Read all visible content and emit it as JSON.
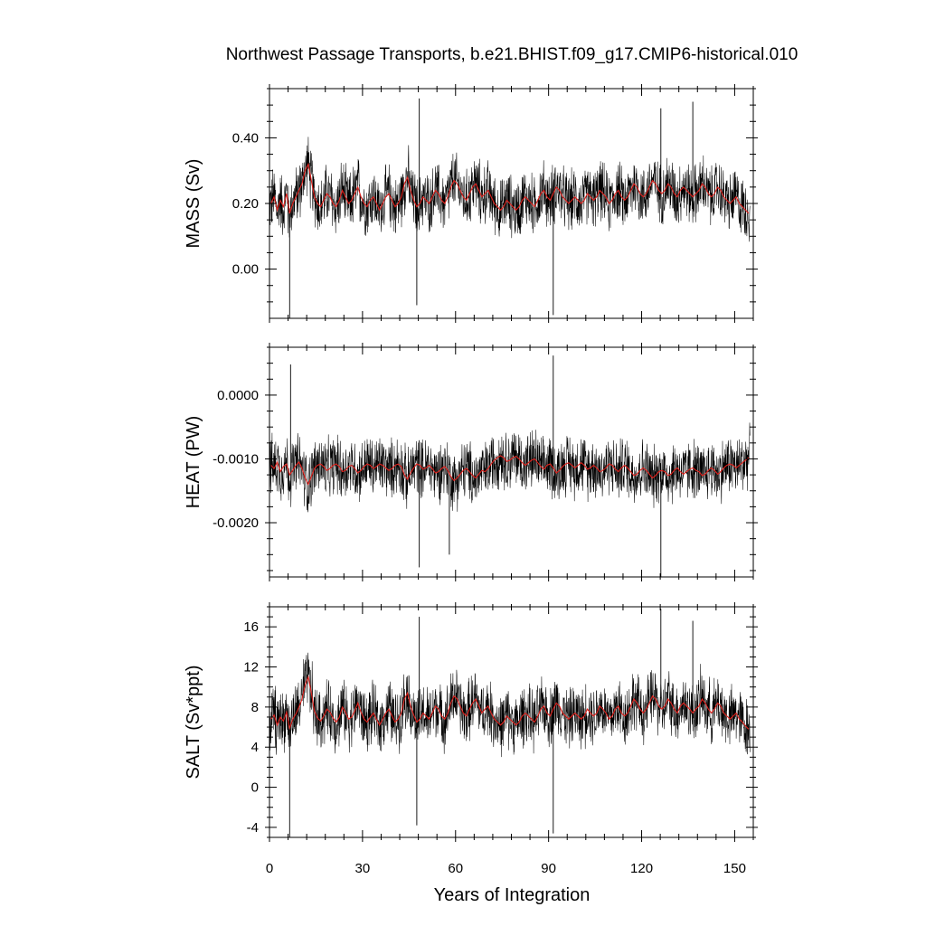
{
  "chart_data": {
    "type": "line",
    "title": "Northwest Passage Transports, b.e21.BHIST.f09_g17.CMIP6-historical.010",
    "xlabel": "Years of Integration",
    "xlim": [
      0,
      156
    ],
    "xticks": [
      0,
      30,
      60,
      90,
      120,
      150
    ],
    "grid": false,
    "colors": {
      "monthly": "#000000",
      "running_mean": "#e0201b"
    },
    "panels": [
      {
        "ylabel": "MASS (Sv)",
        "ylim": [
          -0.15,
          0.55
        ],
        "yticks": [
          0.0,
          0.2,
          0.4
        ],
        "yticklabels": [
          "0.00",
          "0.20",
          "0.40"
        ],
        "series": [
          {
            "values": [
              0.2,
              0.22,
              0.18,
              0.21,
              0.19,
              0.23,
              0.17,
              0.2,
              0.22,
              0.24,
              0.26,
              0.3,
              0.32,
              0.27,
              0.22,
              0.2,
              0.19,
              0.21,
              0.23,
              0.22,
              0.2,
              0.19,
              0.21,
              0.24,
              0.22,
              0.2,
              0.21,
              0.23,
              0.25,
              0.22,
              0.2,
              0.19,
              0.21,
              0.22,
              0.2,
              0.18,
              0.2,
              0.22,
              0.23,
              0.21,
              0.19,
              0.2,
              0.22,
              0.26,
              0.28,
              0.24,
              0.21,
              0.19,
              0.2,
              0.22,
              0.21,
              0.2,
              0.22,
              0.24,
              0.23,
              0.21,
              0.2,
              0.22,
              0.25,
              0.27,
              0.26,
              0.24,
              0.22,
              0.21,
              0.23,
              0.25,
              0.26,
              0.24,
              0.22,
              0.23,
              0.24,
              0.22,
              0.2,
              0.19,
              0.18,
              0.19,
              0.21,
              0.2,
              0.19,
              0.18,
              0.19,
              0.21,
              0.22,
              0.21,
              0.2,
              0.19,
              0.21,
              0.23,
              0.24,
              0.22,
              0.21,
              0.23,
              0.25,
              0.24,
              0.22,
              0.21,
              0.2,
              0.21,
              0.22,
              0.21,
              0.2,
              0.21,
              0.23,
              0.22,
              0.21,
              0.22,
              0.24,
              0.23,
              0.22,
              0.2,
              0.21,
              0.23,
              0.24,
              0.22,
              0.21,
              0.22,
              0.24,
              0.26,
              0.25,
              0.23,
              0.22,
              0.23,
              0.25,
              0.27,
              0.26,
              0.24,
              0.23,
              0.24,
              0.26,
              0.25,
              0.23,
              0.22,
              0.24,
              0.25,
              0.24,
              0.23,
              0.22,
              0.23,
              0.24,
              0.26,
              0.25,
              0.23,
              0.22,
              0.23,
              0.25,
              0.24,
              0.22,
              0.21,
              0.2,
              0.21,
              0.22,
              0.2,
              0.19,
              0.18,
              0.17
            ]
          }
        ],
        "spikes": [
          [
            6.5,
            -0.15
          ],
          [
            47.5,
            -0.11
          ],
          [
            91.5,
            -0.14
          ],
          [
            126.2,
            0.49
          ],
          [
            48.3,
            0.52
          ],
          [
            136.5,
            0.51
          ]
        ]
      },
      {
        "ylabel": "HEAT (PW)",
        "ylim": [
          -0.00285,
          0.00075
        ],
        "yticks": [
          0.0,
          -0.001,
          -0.002
        ],
        "yticklabels": [
          "0.0000",
          "-0.0010",
          "-0.0020"
        ],
        "series": [
          {
            "values": [
              -0.0011,
              -0.00115,
              -0.00105,
              -0.0012,
              -0.00112,
              -0.00108,
              -0.00125,
              -0.00118,
              -0.0011,
              -0.00105,
              -0.00115,
              -0.0013,
              -0.0014,
              -0.00128,
              -0.00115,
              -0.0011,
              -0.00108,
              -0.00112,
              -0.00118,
              -0.00115,
              -0.0011,
              -0.00108,
              -0.00112,
              -0.0012,
              -0.00118,
              -0.00112,
              -0.0011,
              -0.00115,
              -0.00122,
              -0.00118,
              -0.00112,
              -0.00108,
              -0.0011,
              -0.00115,
              -0.00112,
              -0.00108,
              -0.0011,
              -0.00114,
              -0.00118,
              -0.00115,
              -0.0011,
              -0.00108,
              -0.00112,
              -0.00125,
              -0.00132,
              -0.00122,
              -0.00114,
              -0.00108,
              -0.0011,
              -0.00116,
              -0.00114,
              -0.0011,
              -0.00115,
              -0.00122,
              -0.0012,
              -0.00115,
              -0.00112,
              -0.00118,
              -0.00128,
              -0.00134,
              -0.0013,
              -0.00124,
              -0.00118,
              -0.00115,
              -0.0012,
              -0.00126,
              -0.0013,
              -0.00124,
              -0.00118,
              -0.0012,
              -0.00115,
              -0.00108,
              -0.00102,
              -0.00098,
              -0.00095,
              -0.00098,
              -0.00104,
              -0.00102,
              -0.00098,
              -0.00096,
              -0.001,
              -0.00106,
              -0.0011,
              -0.00106,
              -0.00102,
              -0.001,
              -0.00106,
              -0.00112,
              -0.00116,
              -0.0011,
              -0.00108,
              -0.00114,
              -0.00122,
              -0.00118,
              -0.00112,
              -0.00108,
              -0.00106,
              -0.0011,
              -0.00114,
              -0.0011,
              -0.00106,
              -0.0011,
              -0.00116,
              -0.00114,
              -0.0011,
              -0.00114,
              -0.0012,
              -0.00118,
              -0.00114,
              -0.00108,
              -0.0011,
              -0.00116,
              -0.0012,
              -0.00114,
              -0.0011,
              -0.00114,
              -0.0012,
              -0.00126,
              -0.00124,
              -0.00118,
              -0.00114,
              -0.00118,
              -0.00124,
              -0.0013,
              -0.00126,
              -0.0012,
              -0.00118,
              -0.0012,
              -0.00126,
              -0.00124,
              -0.00118,
              -0.00114,
              -0.0012,
              -0.00124,
              -0.0012,
              -0.00116,
              -0.00114,
              -0.00118,
              -0.0012,
              -0.00126,
              -0.00124,
              -0.00118,
              -0.00114,
              -0.00118,
              -0.00124,
              -0.0012,
              -0.00114,
              -0.0011,
              -0.00108,
              -0.0011,
              -0.00114,
              -0.0011,
              -0.00106,
              -0.00102,
              -0.00098
            ]
          }
        ],
        "spikes": [
          [
            91.5,
            0.00062
          ],
          [
            6.8,
            0.00048
          ],
          [
            126.2,
            -0.00285
          ],
          [
            48.3,
            -0.0027
          ],
          [
            58.0,
            -0.0025
          ]
        ]
      },
      {
        "ylabel": "SALT (Sv*ppt)",
        "ylim": [
          -5,
          18
        ],
        "yticks": [
          -4,
          0,
          4,
          8,
          12,
          16
        ],
        "yticklabels": [
          "-4",
          "0",
          "4",
          "8",
          "12",
          "16"
        ],
        "series": [
          {
            "values": [
              6.8,
              7.2,
              6.2,
              7.0,
              6.6,
              7.5,
              5.9,
              6.8,
              7.3,
              8.0,
              8.8,
              10.2,
              11.0,
              9.4,
              7.6,
              6.9,
              6.6,
              7.1,
              7.8,
              7.5,
              6.9,
              6.5,
              7.0,
              8.0,
              7.5,
              6.8,
              7.0,
              7.6,
              8.4,
              7.5,
              6.8,
              6.5,
              7.0,
              7.4,
              6.8,
              6.2,
              6.8,
              7.4,
              7.8,
              7.1,
              6.5,
              6.8,
              7.4,
              8.8,
              9.4,
              8.1,
              7.2,
              6.5,
              6.8,
              7.4,
              7.1,
              6.8,
              7.4,
              8.1,
              7.8,
              7.1,
              6.8,
              7.4,
              8.4,
              9.1,
              8.8,
              8.1,
              7.4,
              7.1,
              7.8,
              8.4,
              8.8,
              8.1,
              7.4,
              7.8,
              8.1,
              7.4,
              6.8,
              6.5,
              6.2,
              6.5,
              7.1,
              6.8,
              6.5,
              6.2,
              6.5,
              7.1,
              7.4,
              7.1,
              6.8,
              6.5,
              7.1,
              7.8,
              8.1,
              7.4,
              7.1,
              7.8,
              8.4,
              8.1,
              7.4,
              7.1,
              6.8,
              7.1,
              7.4,
              7.1,
              6.8,
              7.1,
              7.8,
              7.4,
              7.1,
              7.4,
              8.1,
              7.8,
              7.4,
              6.8,
              7.1,
              7.8,
              8.1,
              7.4,
              7.1,
              7.4,
              8.1,
              8.8,
              8.4,
              7.8,
              7.4,
              7.8,
              8.4,
              9.1,
              8.8,
              8.1,
              7.8,
              8.1,
              8.8,
              8.4,
              7.8,
              7.4,
              8.1,
              8.4,
              8.1,
              7.8,
              7.4,
              7.8,
              8.1,
              8.8,
              8.4,
              7.8,
              7.4,
              7.8,
              8.4,
              8.1,
              7.4,
              7.1,
              6.8,
              7.1,
              7.4,
              6.8,
              6.5,
              6.1,
              5.8
            ]
          }
        ],
        "spikes": [
          [
            6.5,
            -5.0
          ],
          [
            91.5,
            -4.6
          ],
          [
            47.5,
            -3.8
          ],
          [
            126.2,
            17.8
          ],
          [
            48.3,
            17.0
          ],
          [
            136.5,
            16.6
          ]
        ]
      }
    ]
  }
}
